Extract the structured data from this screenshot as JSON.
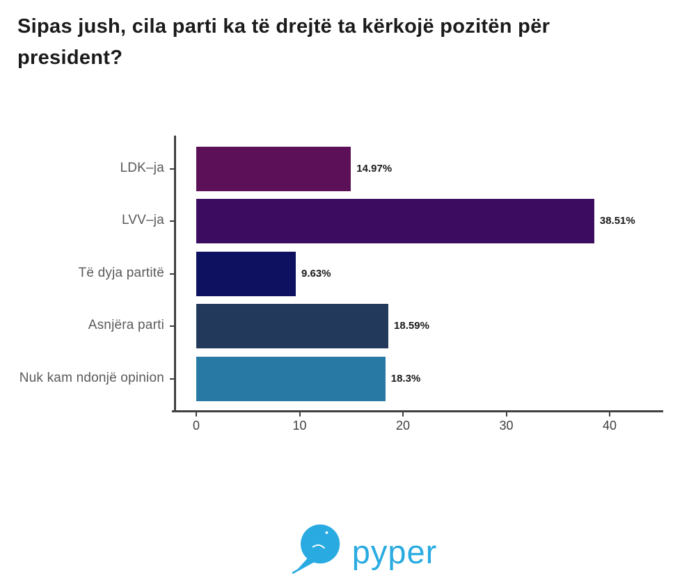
{
  "title": "Sipas jush, cila parti ka të drejtë ta kërkojë pozitën për president?",
  "chart_data": {
    "type": "bar",
    "orientation": "horizontal",
    "title": "Sipas jush, cila parti ka të drejtë ta kërkojë pozitën për president?",
    "categories": [
      "LDK–ja",
      "LVV–ja",
      "Të dyja partitë",
      "Asnjëra parti",
      "Nuk kam ndonjë opinion"
    ],
    "values": [
      14.97,
      38.51,
      9.63,
      18.59,
      18.3
    ],
    "value_labels": [
      "14.97%",
      "38.51%",
      "9.63%",
      "18.59%",
      "18.3%"
    ],
    "bar_colors": [
      "#5B1057",
      "#3B0C5F",
      "#0E1060",
      "#22395C",
      "#2879A4"
    ],
    "x_ticks": [
      0,
      10,
      20,
      30,
      40
    ],
    "xlim": [
      0,
      47
    ],
    "xlabel": "",
    "ylabel": "",
    "grid": false,
    "legend": false,
    "axis_color": "#404040",
    "category_label_color": "#595959",
    "tick_label_color": "#404040",
    "value_label_color": "#1a1a1a"
  },
  "logo": {
    "text": "pyper",
    "color": "#29ABE2",
    "icon": "bird-in-circle-icon"
  }
}
